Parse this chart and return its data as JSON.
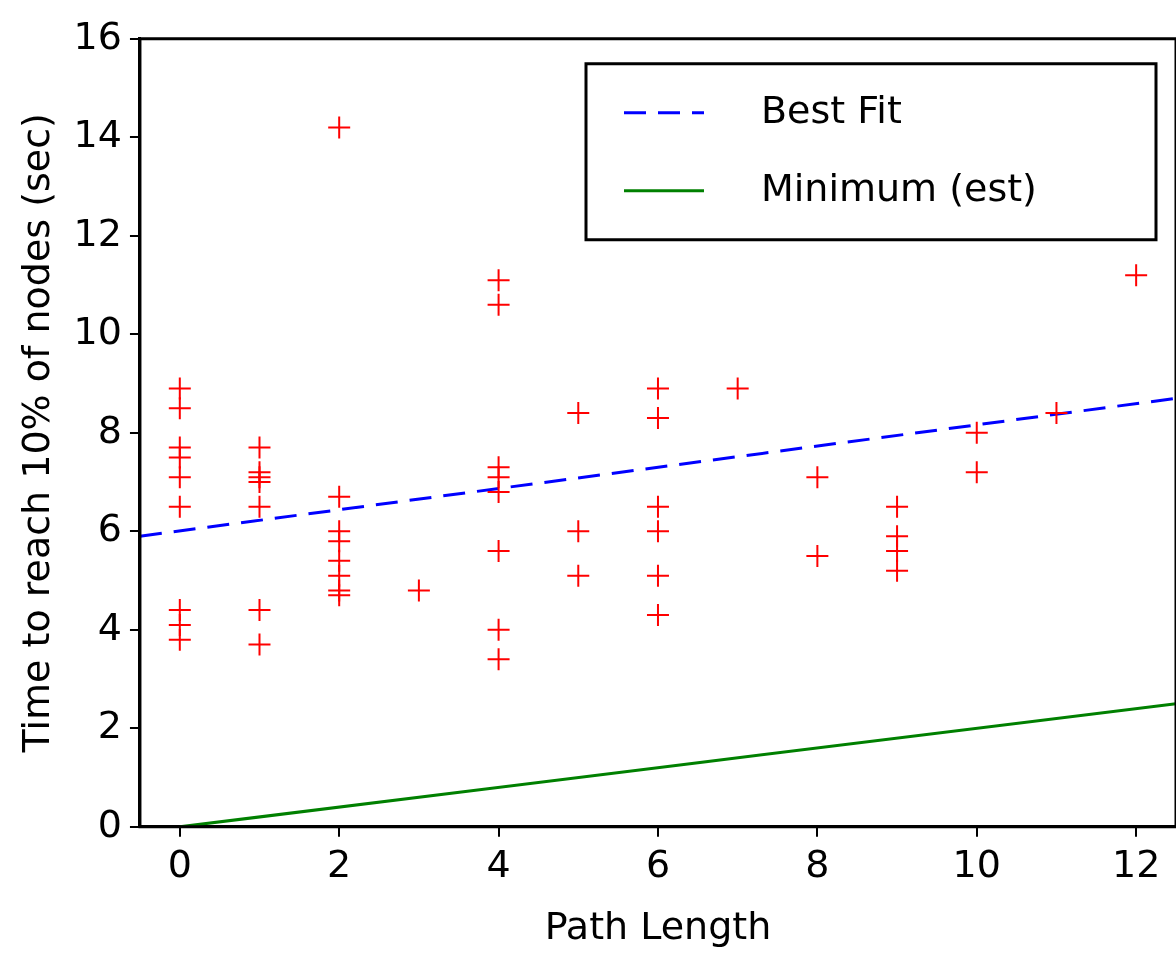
{
  "chart_data": {
    "type": "scatter",
    "xlabel": "Path Length",
    "ylabel": "Time to reach 10% of nodes (sec)",
    "xlim": [
      -0.5,
      12.5
    ],
    "ylim": [
      0,
      16
    ],
    "xticks": [
      0,
      2,
      4,
      6,
      8,
      10,
      12
    ],
    "yticks": [
      0,
      2,
      4,
      6,
      8,
      10,
      12,
      14,
      16
    ],
    "grid": false,
    "legend": "top right",
    "marker": "cross",
    "series": [
      {
        "color": "#ff0000",
        "x": [
          0,
          0,
          0,
          0,
          0,
          0,
          0,
          0,
          0,
          1,
          1,
          1,
          1,
          1,
          1,
          1,
          2,
          2,
          2,
          2,
          2,
          2,
          2,
          2,
          3,
          4,
          4,
          4,
          4,
          4,
          4,
          4,
          4,
          5,
          5,
          5,
          6,
          6,
          6,
          6,
          6,
          6,
          7,
          8,
          8,
          9,
          9,
          9,
          9,
          10,
          10,
          11,
          12
        ],
        "values": [
          8.9,
          8.5,
          7.7,
          7.5,
          7.1,
          6.5,
          4.4,
          4.1,
          3.8,
          7.7,
          7.2,
          7.1,
          7.0,
          6.5,
          4.4,
          3.7,
          14.2,
          6.7,
          6.0,
          5.8,
          5.4,
          5.1,
          4.8,
          4.7,
          4.8,
          11.1,
          10.6,
          7.3,
          7.1,
          6.8,
          5.6,
          4.0,
          3.4,
          8.4,
          6.0,
          5.1,
          8.9,
          8.3,
          6.5,
          6.0,
          5.1,
          4.3,
          8.9,
          7.1,
          5.5,
          6.5,
          5.9,
          5.6,
          5.2,
          8.0,
          7.2,
          8.4,
          11.2
        ]
      },
      {
        "type": "line",
        "name": "Best Fit",
        "color": "#0000ff",
        "line_style": "dashed",
        "marker": "none",
        "x": [
          -0.5,
          12.5
        ],
        "values": [
          5.9,
          8.7
        ]
      },
      {
        "type": "line",
        "name": "Minimum (est)",
        "color": "#008000",
        "line_style": "solid",
        "marker": "none",
        "x": [
          0,
          12.5
        ],
        "values": [
          0,
          2.5
        ]
      }
    ]
  }
}
